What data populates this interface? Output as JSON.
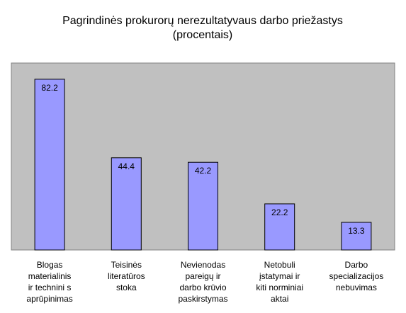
{
  "chart_data": {
    "type": "bar",
    "title_lines": [
      "Pagrindinės prokurorų nerezultatyvaus darbo priežastys",
      "(procentais)"
    ],
    "categories": [
      [
        "Blogas",
        "materialinis",
        "ir technini s",
        "aprūpinimas"
      ],
      [
        "Teisinės",
        "literatūros",
        "stoka"
      ],
      [
        "Nevienodas",
        "pareigų ir",
        "darbo krūvio",
        "paskirstymas"
      ],
      [
        "Netobuli",
        "įstatymai ir",
        "kiti norminiai",
        "aktai"
      ],
      [
        "Darbo",
        "specializacijos",
        "nebuvimas"
      ]
    ],
    "values": [
      82.2,
      44.4,
      42.2,
      22.2,
      13.3
    ],
    "data_labels": [
      "82.2",
      "44.4",
      "42.2",
      "22.2",
      "13.3"
    ],
    "ylim": [
      0,
      90
    ],
    "grid": false,
    "legend": "none",
    "colors": {
      "plot_background": "#c0c0c0",
      "bar_fill": "#9999ff",
      "bar_stroke": "#000000",
      "label_box": "#ffffff",
      "text": "#000000"
    }
  }
}
